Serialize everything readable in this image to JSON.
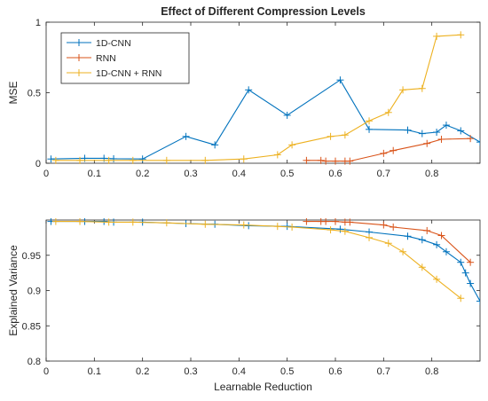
{
  "chart_data": [
    {
      "type": "line",
      "title": "Effect of Different Compression Levels",
      "xlabel": "",
      "ylabel": "MSE",
      "xlim": [
        0,
        0.9
      ],
      "ylim": [
        0,
        1
      ],
      "xticks": [
        0,
        0.1,
        0.2,
        0.3,
        0.4,
        0.5,
        0.6,
        0.7,
        0.8
      ],
      "xtick_labels": [
        "0",
        "0.1",
        "0.2",
        "0.3",
        "0.4",
        "0.5",
        "0.6",
        "0.7",
        "0.8"
      ],
      "yticks": [
        0,
        0.5,
        1
      ],
      "ytick_labels": [
        "0",
        "0.5",
        "1"
      ],
      "grid": false,
      "legend": "top-left",
      "series": [
        {
          "name": "1D-CNN",
          "color": "#0072BD",
          "x": [
            0.01,
            0.08,
            0.12,
            0.14,
            0.2,
            0.29,
            0.35,
            0.42,
            0.5,
            0.61,
            0.67,
            0.75,
            0.78,
            0.81,
            0.83,
            0.86,
            0.9
          ],
          "y": [
            0.03,
            0.035,
            0.035,
            0.032,
            0.03,
            0.19,
            0.13,
            0.52,
            0.34,
            0.59,
            0.24,
            0.235,
            0.21,
            0.22,
            0.27,
            0.23,
            0.15
          ]
        },
        {
          "name": "RNN",
          "color": "#D95319",
          "x": [
            0.54,
            0.57,
            0.58,
            0.6,
            0.62,
            0.63,
            0.7,
            0.72,
            0.79,
            0.82,
            0.88
          ],
          "y": [
            0.02,
            0.02,
            0.015,
            0.015,
            0.015,
            0.015,
            0.07,
            0.09,
            0.14,
            0.17,
            0.175
          ]
        },
        {
          "name": "1D-CNN + RNN",
          "color": "#EDB120",
          "x": [
            0.02,
            0.07,
            0.13,
            0.18,
            0.25,
            0.33,
            0.41,
            0.48,
            0.51,
            0.59,
            0.62,
            0.67,
            0.71,
            0.74,
            0.78,
            0.81,
            0.86
          ],
          "y": [
            0.02,
            0.02,
            0.02,
            0.02,
            0.02,
            0.02,
            0.03,
            0.06,
            0.13,
            0.19,
            0.2,
            0.3,
            0.36,
            0.52,
            0.53,
            0.9,
            0.91
          ]
        }
      ]
    },
    {
      "type": "line",
      "title": "",
      "xlabel": "Learnable Reduction",
      "ylabel": "Explained Variance",
      "xlim": [
        0,
        0.9
      ],
      "ylim": [
        0.8,
        1
      ],
      "xticks": [
        0,
        0.1,
        0.2,
        0.3,
        0.4,
        0.5,
        0.6,
        0.7,
        0.8
      ],
      "xtick_labels": [
        "0",
        "0.1",
        "0.2",
        "0.3",
        "0.4",
        "0.5",
        "0.6",
        "0.7",
        "0.8"
      ],
      "yticks": [
        0.8,
        0.85,
        0.9,
        0.95
      ],
      "ytick_labels": [
        "0.8",
        "0.85",
        "0.9",
        "0.95"
      ],
      "grid": false,
      "legend": "none",
      "series": [
        {
          "name": "1D-CNN",
          "color": "#0072BD",
          "x": [
            0.01,
            0.08,
            0.12,
            0.14,
            0.2,
            0.29,
            0.35,
            0.42,
            0.5,
            0.61,
            0.67,
            0.75,
            0.78,
            0.81,
            0.83,
            0.86,
            0.87,
            0.88,
            0.9
          ],
          "y": [
            0.998,
            0.998,
            0.998,
            0.997,
            0.997,
            0.995,
            0.994,
            0.992,
            0.991,
            0.987,
            0.983,
            0.977,
            0.972,
            0.965,
            0.955,
            0.94,
            0.925,
            0.91,
            0.885
          ]
        },
        {
          "name": "RNN",
          "color": "#D95319",
          "x": [
            0.54,
            0.57,
            0.58,
            0.6,
            0.62,
            0.63,
            0.7,
            0.72,
            0.79,
            0.82,
            0.88
          ],
          "y": [
            0.998,
            0.998,
            0.998,
            0.998,
            0.997,
            0.997,
            0.993,
            0.99,
            0.985,
            0.978,
            0.94
          ]
        },
        {
          "name": "1D-CNN + RNN",
          "color": "#EDB120",
          "x": [
            0.02,
            0.07,
            0.13,
            0.18,
            0.25,
            0.33,
            0.41,
            0.48,
            0.51,
            0.59,
            0.62,
            0.67,
            0.71,
            0.74,
            0.78,
            0.81,
            0.86
          ],
          "y": [
            0.998,
            0.998,
            0.997,
            0.997,
            0.996,
            0.994,
            0.993,
            0.991,
            0.99,
            0.986,
            0.984,
            0.975,
            0.967,
            0.955,
            0.933,
            0.916,
            0.889
          ]
        }
      ]
    }
  ]
}
